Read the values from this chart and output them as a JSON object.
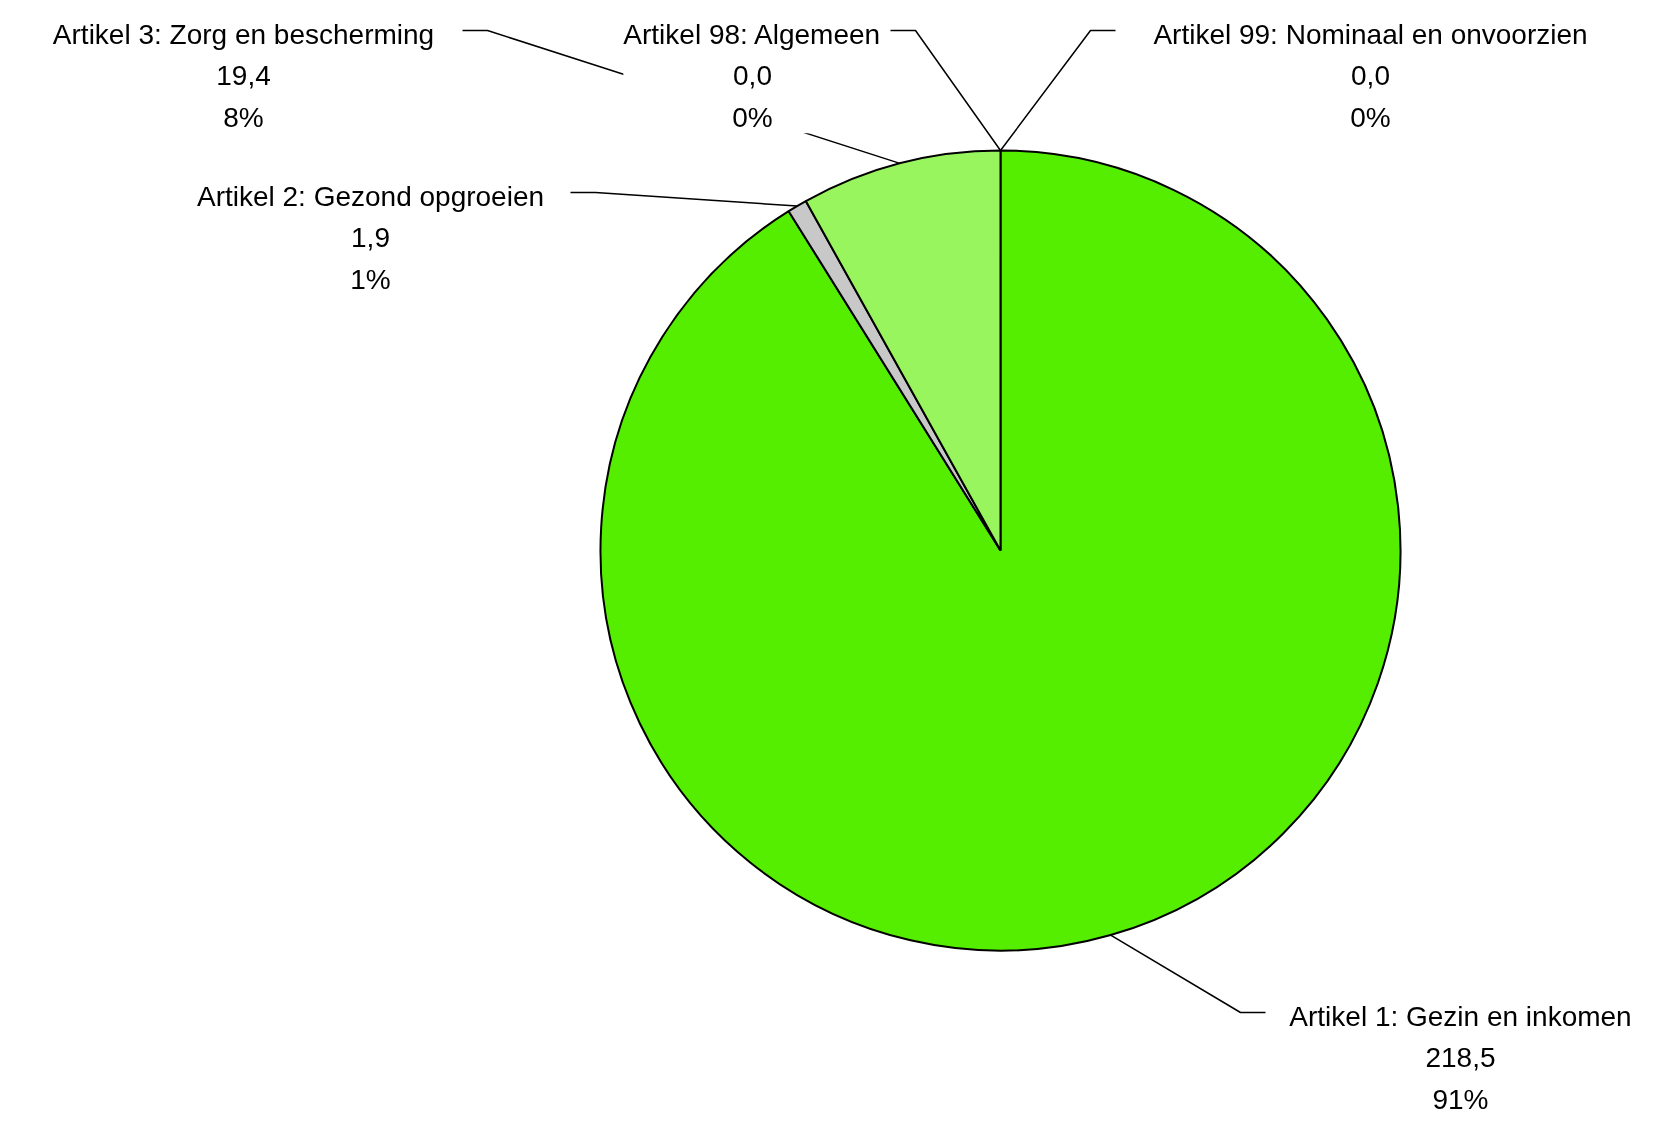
{
  "chart_data": {
    "type": "pie",
    "categories": [
      "Artikel 1: Gezin en inkomen",
      "Artikel 2: Gezond opgroeien",
      "Artikel 3: Zorg en bescherming",
      "Artikel 98: Algemeen",
      "Artikel 99: Nominaal en onvoorzien"
    ],
    "values": [
      218.5,
      1.9,
      19.4,
      0.0,
      0.0
    ],
    "colors": [
      "#55ee00",
      "#c8c8c8",
      "#99f55e",
      "#cccccc",
      "#cccccc"
    ],
    "value_labels": [
      "218,5\n91%",
      "1,9\n1%",
      "19,4\n8%",
      "0,0\n0%",
      "0,0\n0%"
    ]
  }
}
